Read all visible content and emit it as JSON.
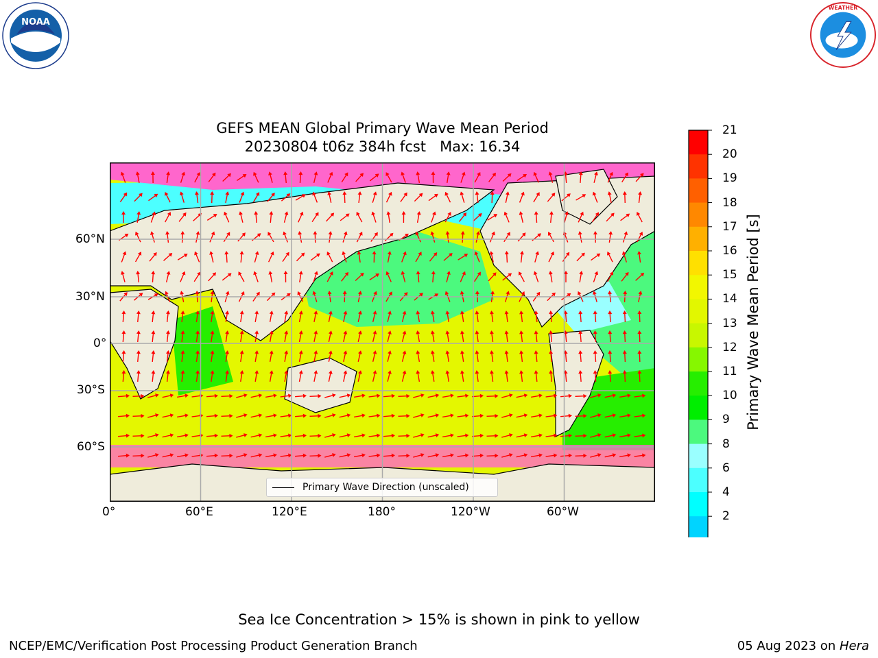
{
  "title": {
    "line1": "GEFS MEAN Global Primary Wave Mean Period",
    "line2": "20230804 t06z 384h fcst   Max: 16.34"
  },
  "axes": {
    "x_ticks": [
      "0°",
      "60°E",
      "120°E",
      "180°",
      "120°W",
      "60°W"
    ],
    "y_ticks": [
      "60°N",
      "30°N",
      "0°",
      "30°S",
      "60°S"
    ]
  },
  "legend": {
    "label": "Primary Wave Direction (unscaled)"
  },
  "colorbar": {
    "label": "Primary Wave Mean Period [s]",
    "ticks": [
      "21",
      "20",
      "19",
      "18",
      "17",
      "16",
      "15",
      "14",
      "13",
      "12",
      "11",
      "10",
      "9",
      "8",
      "6",
      "4",
      "2"
    ],
    "colors": [
      "#ff0000",
      "#ff3300",
      "#ff6000",
      "#ff8800",
      "#ffb000",
      "#ffe000",
      "#f2f700",
      "#e2f700",
      "#c8f700",
      "#86f700",
      "#26ee00",
      "#00ee00",
      "#4cf97e",
      "#9affff",
      "#4cffff",
      "#00ffff",
      "#00d4ff",
      "#0077ff"
    ],
    "extend_color": "#0033ff"
  },
  "note": "Sea Ice Concentration > 15% is shown in pink to yellow",
  "footer": {
    "left": "NCEP/EMC/Verification Post Processing Product Generation Branch",
    "right_prefix": "05 Aug 2023 on ",
    "right_italic": "Hera"
  },
  "logos": {
    "left": "noaa-logo",
    "right": "nws-logo"
  },
  "colors": {
    "land": "#efecdb",
    "arrow": "#ff0000",
    "ice": "#ff66cc"
  }
}
